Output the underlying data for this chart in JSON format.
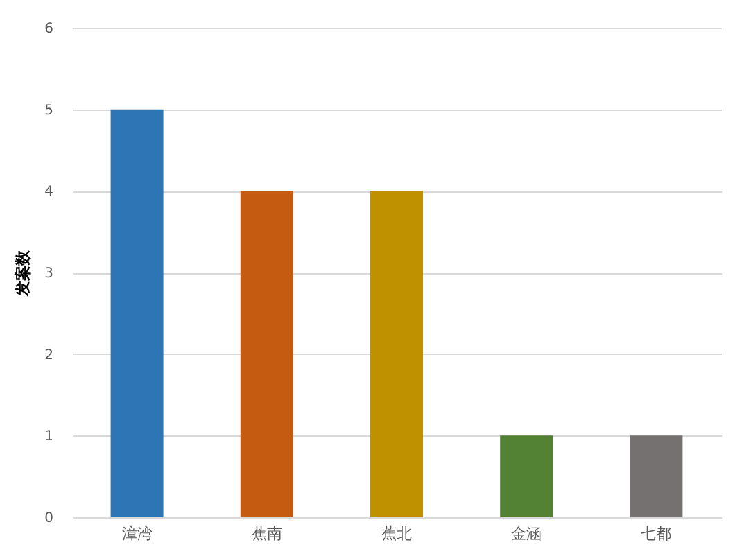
{
  "chart_data": {
    "type": "bar",
    "ylabel": "发案数",
    "categories": [
      "漳湾",
      "蕉南",
      "蕉北",
      "金涵",
      "七都"
    ],
    "values": [
      5,
      4,
      4,
      1,
      1
    ],
    "colors": [
      "#2e75b6",
      "#c55a11",
      "#bf9000",
      "#548235",
      "#767171"
    ],
    "ylim": [
      0,
      6
    ],
    "yticks": [
      0,
      1,
      2,
      3,
      4,
      5,
      6
    ],
    "grid": "y",
    "legend": false
  }
}
